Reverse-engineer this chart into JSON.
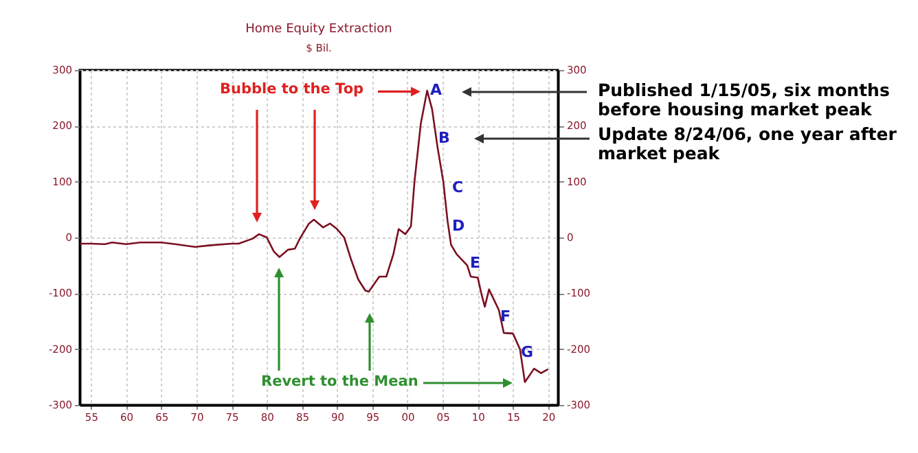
{
  "chart_data": {
    "type": "line",
    "title": "Home Equity Extraction",
    "subtitle": "$ Bil.",
    "x": [
      1953.4,
      1955,
      1957,
      1958,
      1960,
      1962,
      1965,
      1967,
      1969.8,
      1972,
      1975,
      1976,
      1978,
      1978.9,
      1980,
      1981,
      1981.8,
      1983,
      1984,
      1984.7,
      1986,
      1986.7,
      1988,
      1989,
      1990,
      1991,
      1992,
      1993,
      1994,
      1994.5,
      1996,
      1997,
      1998,
      1998.75,
      1999.7,
      2000.5,
      2001,
      2001.9,
      2002.8,
      2003.5,
      2004.3,
      2005.1,
      2005.7,
      2006.2,
      2007,
      2008.5,
      2009,
      2010,
      2010.5,
      2011,
      2011.6,
      2013,
      2013.7,
      2015,
      2016,
      2016.7,
      2018,
      2019,
      2020
    ],
    "series": [
      {
        "color": "#7a1020",
        "values": [
          -11,
          -11,
          -12,
          -9,
          -12,
          -9,
          -9,
          -12,
          -17,
          -14,
          -11,
          -11,
          -2,
          6,
          0,
          -25,
          -35,
          -22,
          -20,
          -2,
          25,
          32,
          18,
          25,
          15,
          0,
          -40,
          -75,
          -95,
          -97,
          -70,
          -70,
          -30,
          15,
          6,
          20,
          100,
          204,
          263,
          230,
          160,
          100,
          30,
          -13,
          -30,
          -50,
          -70,
          -72,
          -100,
          -124,
          -93,
          -130,
          -171,
          -172,
          -200,
          -259,
          -235,
          -243,
          -236
        ]
      }
    ],
    "xlim": [
      1953.4,
      2021.4
    ],
    "xticks": [
      {
        "value": 1955,
        "label": "55"
      },
      {
        "value": 1960,
        "label": "60"
      },
      {
        "value": 1965,
        "label": "65"
      },
      {
        "value": 1970,
        "label": "70"
      },
      {
        "value": 1975,
        "label": "75"
      },
      {
        "value": 1980,
        "label": "80"
      },
      {
        "value": 1985,
        "label": "85"
      },
      {
        "value": 1990,
        "label": "90"
      },
      {
        "value": 1995,
        "label": "95"
      },
      {
        "value": 2000,
        "label": "00"
      },
      {
        "value": 2005,
        "label": "05"
      },
      {
        "value": 2010,
        "label": "10"
      },
      {
        "value": 2015,
        "label": "15"
      },
      {
        "value": 2020,
        "label": "20"
      }
    ],
    "ylim": [
      -300,
      300
    ],
    "yticks": [
      -300,
      -200,
      -100,
      0,
      100,
      200,
      300
    ],
    "y2lim": [
      -300,
      300
    ],
    "y2ticks": [
      -300,
      -200,
      -100,
      0,
      100,
      200,
      300
    ],
    "grid": true,
    "marker": "none",
    "line_style": "solid",
    "annotations": [
      "A",
      "B",
      "C",
      "D",
      "E",
      "F",
      "G",
      "Bubble to the Top",
      "Revert to the Mean",
      "Published 1/15/05, six months before housing market peak",
      "Update 8/24/06, one year after market peak"
    ]
  }
}
